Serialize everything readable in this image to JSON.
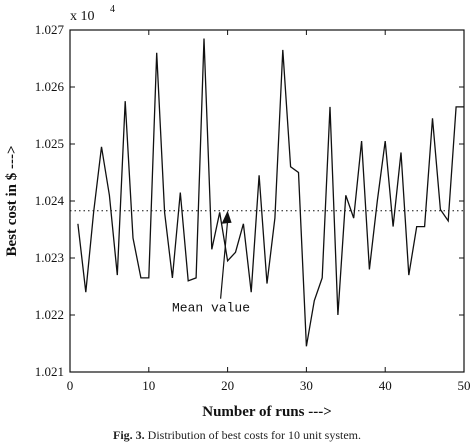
{
  "chart_data": {
    "type": "line",
    "xlabel": "Number of runs --->",
    "ylabel": "Best cost in $ --->",
    "y_exponent_label": "x 10",
    "y_exponent_power": "4",
    "xlim": [
      0,
      50
    ],
    "ylim": [
      1.021,
      1.027
    ],
    "xticks": [
      0,
      10,
      20,
      30,
      40,
      50
    ],
    "yticks": [
      1.021,
      1.022,
      1.023,
      1.024,
      1.025,
      1.026,
      1.027
    ],
    "xtick_labels": [
      "0",
      "10",
      "20",
      "30",
      "40",
      "50"
    ],
    "ytick_labels": [
      "1.021",
      "1.022",
      "1.023",
      "1.024",
      "1.025",
      "1.026",
      "1.027"
    ],
    "series": [
      {
        "x": [
          1,
          2,
          3,
          4,
          5,
          6,
          7,
          8,
          9,
          10,
          11,
          12,
          13,
          14,
          15,
          16,
          17,
          18,
          19,
          20,
          21,
          22,
          23,
          24,
          25,
          26,
          27,
          28,
          29,
          30,
          31,
          32,
          33,
          34,
          35,
          36,
          37,
          38,
          39,
          40,
          41,
          42,
          43,
          44,
          45,
          46,
          47,
          48,
          49,
          50
        ],
        "y": [
          1.0236,
          1.0224,
          1.0238,
          1.02495,
          1.0241,
          1.0227,
          1.02575,
          1.02335,
          1.02265,
          1.02265,
          1.0266,
          1.0238,
          1.02265,
          1.02415,
          1.0226,
          1.02265,
          1.02685,
          1.02315,
          1.0238,
          1.02295,
          1.0231,
          1.0236,
          1.0224,
          1.02445,
          1.02255,
          1.0237,
          1.02665,
          1.0246,
          1.0245,
          1.02145,
          1.02225,
          1.02265,
          1.02565,
          1.022,
          1.0241,
          1.0237,
          1.02505,
          1.0228,
          1.024,
          1.02505,
          1.02355,
          1.02485,
          1.0227,
          1.02355,
          1.02355,
          1.02545,
          1.02385,
          1.02365,
          1.02565,
          1.02565
        ],
        "color": "#111111"
      }
    ],
    "mean_line": {
      "y": 1.02383,
      "style": "dotted"
    },
    "annotation": {
      "text": "Mean value",
      "arrow_x": 20,
      "arrow_y": 1.02383
    },
    "grid": false
  },
  "caption": {
    "label": "Fig. 3.",
    "text": "Distribution of best costs for 10 unit system."
  }
}
